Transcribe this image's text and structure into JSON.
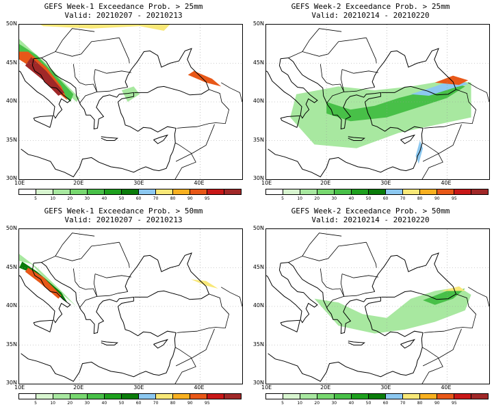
{
  "panels": [
    {
      "title": "GEFS Week-1 Exceedance Prob. > 25mm",
      "valid": "Valid: 20210207 - 20210213"
    },
    {
      "title": "GEFS Week-2 Exceedance Prob. > 25mm",
      "valid": "Valid: 20210214 - 20210220"
    },
    {
      "title": "GEFS Week-1 Exceedance Prob. > 50mm",
      "valid": "Valid: 20210207 - 20210213"
    },
    {
      "title": "GEFS Week-2 Exceedance Prob. > 50mm",
      "valid": "Valid: 20210214 - 20210220"
    }
  ],
  "lat_labels": [
    "50N",
    "45N",
    "40N",
    "35N",
    "30N"
  ],
  "lon_labels": [
    "10E",
    "20E",
    "30E",
    "40E"
  ],
  "colorbar": {
    "labels": [
      "5",
      "10",
      "20",
      "30",
      "40",
      "50",
      "60",
      "70",
      "80",
      "90",
      "95"
    ],
    "colors": [
      "#ffffff",
      "#d8f5d0",
      "#a8e8a0",
      "#78d870",
      "#48c048",
      "#1ea01e",
      "#0a7c0a",
      "#8cc8f0",
      "#f8e878",
      "#f8b020",
      "#e85818",
      "#c81818",
      "#a02828"
    ]
  }
}
